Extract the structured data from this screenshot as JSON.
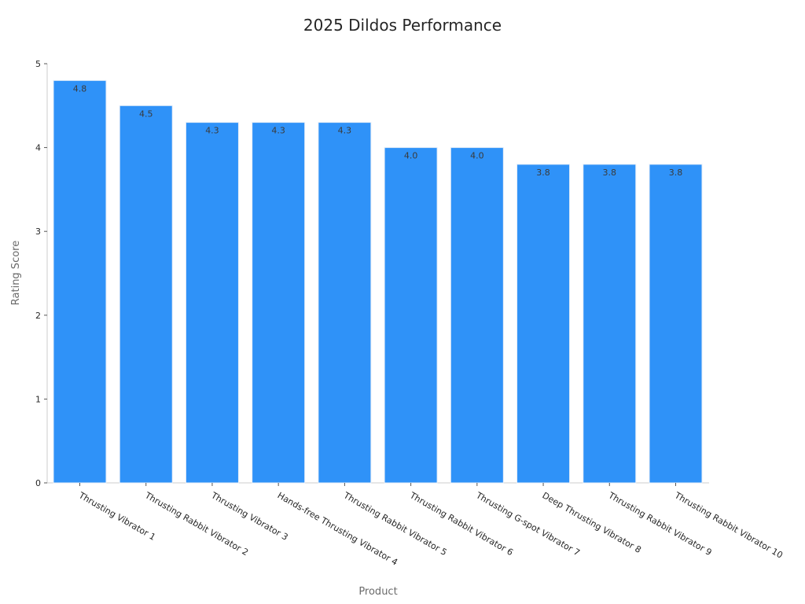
{
  "chart_data": {
    "type": "bar",
    "title": "2025 Dildos Performance",
    "xlabel": "Product",
    "ylabel": "Rating Score",
    "categories": [
      "Thrusting Vibrator 1",
      "Thrusting Rabbit Vibrator 2",
      "Thrusting Vibrator 3",
      "Hands-free Thrusting Vibrator 4",
      "Thrusting Rabbit Vibrator 5",
      "Thrusting Rabbit Vibrator 6",
      "Thrusting G-spot Vibrator 7",
      "Deep Thrusting Vibrator 8",
      "Thrusting Rabbit Vibrator 9",
      "Thrusting Rabbit Vibrator 10"
    ],
    "values": [
      4.8,
      4.5,
      4.3,
      4.3,
      4.3,
      4.0,
      4.0,
      3.8,
      3.8,
      3.8
    ],
    "data_labels": [
      "4.8",
      "4.5",
      "4.3",
      "4.3",
      "4.3",
      "4.0",
      "4.0",
      "3.8",
      "3.8",
      "3.8"
    ],
    "ylim": [
      0,
      5
    ],
    "yticks": [
      "0",
      "1",
      "2",
      "3",
      "4",
      "5"
    ],
    "bar_color": "#2f92f8",
    "grid": false,
    "legend": "none"
  }
}
